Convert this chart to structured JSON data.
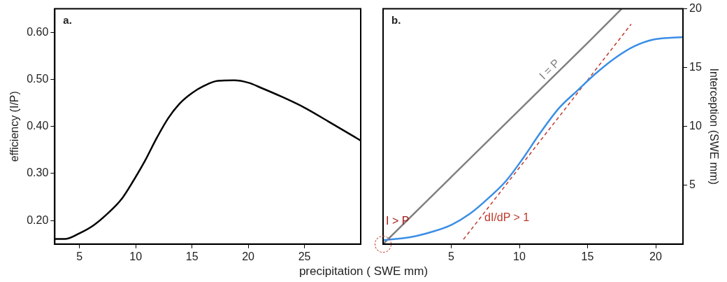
{
  "chart_data": [
    {
      "type": "line",
      "title": "a.",
      "xlabel": "precipitation ( SWE mm)",
      "ylabel": "efficiency (I/P)",
      "x": [
        2.8,
        3.75,
        5,
        6.25,
        7.5,
        8.75,
        9.8,
        10.8,
        11.9,
        12.9,
        13.96,
        15,
        16.04,
        17.3,
        18.75,
        20,
        21.25,
        22.9,
        25,
        27.1,
        30
      ],
      "series": [
        {
          "color": "#000000",
          "values": [
            0.161,
            0.161,
            0.173,
            0.19,
            0.215,
            0.246,
            0.285,
            0.326,
            0.377,
            0.418,
            0.45,
            0.471,
            0.486,
            0.497,
            0.498,
            0.493,
            0.481,
            0.464,
            0.44,
            0.411,
            0.37
          ]
        }
      ],
      "xlim": [
        2.8,
        30
      ],
      "ylim": [
        0.15,
        0.65
      ],
      "xticks": [
        5,
        10,
        15,
        20,
        25
      ],
      "yticks": [
        {
          "value": 0.2,
          "label": "0.20"
        },
        {
          "value": 0.3,
          "label": "0.30"
        },
        {
          "value": 0.4,
          "label": "0.40"
        },
        {
          "value": 0.5,
          "label": "0.50"
        },
        {
          "value": 0.6,
          "label": "0.60"
        }
      ],
      "grid": false,
      "legend": false,
      "marker": "none",
      "line_style": "solid"
    },
    {
      "type": "line",
      "title": "b.",
      "y2label": "Interception (SWE mm)",
      "series": [
        {
          "color": "#3a8ee6",
          "axis": "y2",
          "x": [
            0,
            1.97,
            3.68,
            5.04,
            6.4,
            7.8,
            9,
            10.26,
            11.5,
            12.9,
            14.3,
            15.6,
            17,
            18.4,
            19.9,
            22
          ],
          "values": [
            0.33,
            0.58,
            1.07,
            1.65,
            2.6,
            3.98,
            5.34,
            7.28,
            9.4,
            11.55,
            13.1,
            14.5,
            15.8,
            16.8,
            17.4,
            17.6
          ]
        },
        {
          "name": "I = P",
          "color": "#808080",
          "axis": "y2",
          "marker": "none",
          "x": [
            0,
            5,
            10,
            15,
            17.5
          ],
          "values": [
            0,
            5.7,
            11.4,
            17.1,
            20
          ]
        },
        {
          "name": "dI/dP > 1",
          "color": "#c0392b",
          "axis": "y2",
          "line_style": "dashed",
          "x": [
            5.9,
            18.2
          ],
          "values": [
            0.4,
            18.7
          ]
        }
      ],
      "xlim": [
        0,
        22
      ],
      "y2lim": [
        0,
        20
      ],
      "xticks": [
        5,
        10,
        15,
        20
      ],
      "y2ticks": [
        5,
        10,
        15,
        20
      ],
      "annotations": [
        "I > P"
      ],
      "grid": false,
      "legend": false,
      "marker": "none",
      "line_style": "solid"
    }
  ]
}
